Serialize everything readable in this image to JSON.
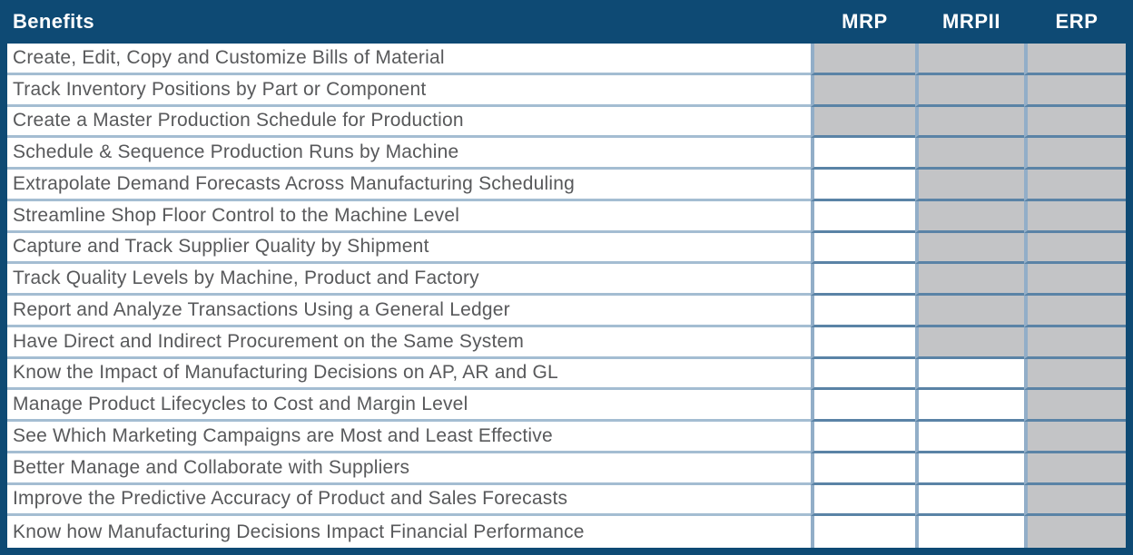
{
  "chart_data": {
    "type": "table",
    "title": "Benefits",
    "header_label": "Benefits",
    "columns": [
      "MRP",
      "MRPII",
      "ERP"
    ],
    "cell_encoding": {
      "filled_gray_cell": "benefit supported by system",
      "empty_white_cell": "benefit not supported"
    },
    "rows": [
      {
        "benefit": "Create, Edit, Copy and Customize Bills of Material",
        "supported": [
          true,
          true,
          true
        ]
      },
      {
        "benefit": "Track Inventory Positions by Part or Component",
        "supported": [
          true,
          true,
          true
        ]
      },
      {
        "benefit": "Create a Master Production Schedule for Production",
        "supported": [
          true,
          true,
          true
        ]
      },
      {
        "benefit": "Schedule & Sequence Production Runs by Machine",
        "supported": [
          false,
          true,
          true
        ]
      },
      {
        "benefit": "Extrapolate Demand Forecasts Across Manufacturing Scheduling",
        "supported": [
          false,
          true,
          true
        ]
      },
      {
        "benefit": "Streamline Shop Floor Control to the Machine Level",
        "supported": [
          false,
          true,
          true
        ]
      },
      {
        "benefit": "Capture and Track Supplier Quality by Shipment",
        "supported": [
          false,
          true,
          true
        ]
      },
      {
        "benefit": "Track Quality Levels by Machine, Product and Factory",
        "supported": [
          false,
          true,
          true
        ]
      },
      {
        "benefit": "Report and Analyze Transactions Using a General Ledger",
        "supported": [
          false,
          true,
          true
        ]
      },
      {
        "benefit": "Have Direct and Indirect Procurement on the Same System",
        "supported": [
          false,
          true,
          true
        ]
      },
      {
        "benefit": "Know the Impact of Manufacturing Decisions on AP, AR and GL",
        "supported": [
          false,
          false,
          true
        ]
      },
      {
        "benefit": "Manage Product Lifecycles to Cost and Margin Level",
        "supported": [
          false,
          false,
          true
        ]
      },
      {
        "benefit": "See Which Marketing Campaigns are Most and Least Effective",
        "supported": [
          false,
          false,
          true
        ]
      },
      {
        "benefit": "Better Manage and Collaborate with Suppliers",
        "supported": [
          false,
          false,
          true
        ]
      },
      {
        "benefit": "Improve the Predictive Accuracy of Product and Sales Forecasts",
        "supported": [
          false,
          false,
          true
        ]
      },
      {
        "benefit": "Know how Manufacturing Decisions Impact Financial Performance",
        "supported": [
          false,
          false,
          true
        ]
      }
    ],
    "colors": {
      "header_bg": "#0e4a74",
      "frame_border": "#0e4a74",
      "header_text": "#ffffff",
      "filled_cell": "#c3c4c6",
      "empty_cell": "#ffffff",
      "benefit_text": "#58595b",
      "grid_light_blue": "#a4bdd2",
      "grid_steel_blue": "#5a83a6",
      "column_divider": "#92aec8"
    }
  }
}
